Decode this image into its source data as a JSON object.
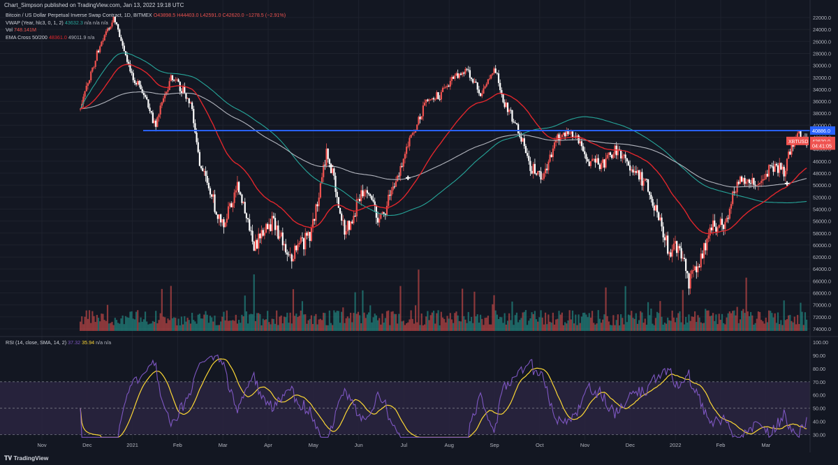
{
  "header": {
    "published": "Chart_Simpson published on TradingView.com, Jan 13, 2022 19:18 UTC"
  },
  "legend": {
    "main": {
      "name": "Bitcoin / US Dollar Perpetual Inverse Swap Contract, 1D, BITMEX",
      "o": "O43898.5",
      "h": "H44403.0",
      "l": "L42591.0",
      "c": "C42620.0",
      "chg": "−1278.5 (−2.91%)"
    },
    "vwap": {
      "name": "VWAP (Year, hlc3, 0, 1, 2)",
      "value": "43632.3",
      "rest": "n/a  n/a  n/a"
    },
    "vol": {
      "name": "Vol",
      "value": "748.141M"
    },
    "ema": {
      "name": "EMA Cross 50/200",
      "v1": "48361.0",
      "v2": "49011.9",
      "rest": "n/a"
    },
    "rsi": {
      "name": "RSI (14, close, SMA, 14, 2)",
      "v1": "37.32",
      "v2": "35.94",
      "rest": "n/a  n/a"
    }
  },
  "colors": {
    "bg": "#131722",
    "up": "#ffffff",
    "down": "#ef5350",
    "vol_up": "#26a69a",
    "vol_down": "#ef5350",
    "level_line": "#2962ff",
    "ema_fast": "#e0262c",
    "ema_slow": "#b2b5be",
    "vwap": "#26a69a",
    "rsi": "#7e57c2",
    "rsi_ma": "#fdd835",
    "rsi_band": "#2a2440"
  },
  "footer": {
    "brand": "TradingView"
  },
  "chart_data": [
    {
      "type": "candlestick",
      "scale": "inverted",
      "axis_ticks": [
        "22000.0",
        "24000.0",
        "26000.0",
        "28000.0",
        "30000.0",
        "32000.0",
        "34000.0",
        "36000.0",
        "38000.0",
        "40000.0",
        "42000.0",
        "44000.0",
        "46000.0",
        "48000.0",
        "50000.0",
        "52000.0",
        "54000.0",
        "56000.0",
        "58000.0",
        "60000.0",
        "62000.0",
        "64000.0",
        "66000.0",
        "68000.0",
        "70000.0",
        "72000.0",
        "74000.0"
      ],
      "x_ticks": [
        "Nov",
        "Dec",
        "2021",
        "Feb",
        "Mar",
        "Apr",
        "May",
        "Jun",
        "Jul",
        "Aug",
        "Sep",
        "Oct",
        "Nov",
        "Dec",
        "2022",
        "Feb",
        "Mar"
      ],
      "price_labels": [
        {
          "text": "40886.0",
          "value": 40886,
          "color": "#2962ff"
        },
        {
          "text": "42620.0",
          "value": 42620,
          "color": "#ef5350"
        },
        {
          "text": "04:41:05",
          "value": 43400,
          "color": "#ef5350"
        }
      ],
      "symbol_label": "XBTUSD",
      "horizontal_level": 40886,
      "ylim": [
        21000,
        75000
      ],
      "anchors": [
        {
          "month": 0.0,
          "price": 55000
        },
        {
          "month": 1.2,
          "price": 41000
        },
        {
          "month": 1.8,
          "price": 26000
        },
        {
          "month": 2.1,
          "price": 22000
        },
        {
          "month": 2.4,
          "price": 30000
        },
        {
          "month": 2.8,
          "price": 36000
        },
        {
          "month": 3.0,
          "price": 40000
        },
        {
          "month": 3.35,
          "price": 32000
        },
        {
          "month": 3.6,
          "price": 34000
        },
        {
          "month": 3.8,
          "price": 37000
        },
        {
          "month": 4.0,
          "price": 47000
        },
        {
          "month": 4.5,
          "price": 57000
        },
        {
          "month": 4.8,
          "price": 50000
        },
        {
          "month": 5.2,
          "price": 60000
        },
        {
          "month": 5.6,
          "price": 56000
        },
        {
          "month": 6.0,
          "price": 62000
        },
        {
          "month": 6.45,
          "price": 58000
        },
        {
          "month": 6.8,
          "price": 44000
        },
        {
          "month": 7.2,
          "price": 58000
        },
        {
          "month": 7.6,
          "price": 51000
        },
        {
          "month": 8.0,
          "price": 56000
        },
        {
          "month": 8.5,
          "price": 45000
        },
        {
          "month": 9.0,
          "price": 36000
        },
        {
          "month": 9.3,
          "price": 35000
        },
        {
          "month": 9.6,
          "price": 32000
        },
        {
          "month": 9.9,
          "price": 31000
        },
        {
          "month": 10.2,
          "price": 35000
        },
        {
          "month": 10.5,
          "price": 30000
        },
        {
          "month": 10.7,
          "price": 36000
        },
        {
          "month": 11.0,
          "price": 40000
        },
        {
          "month": 11.3,
          "price": 47000
        },
        {
          "month": 11.6,
          "price": 48500
        },
        {
          "month": 11.9,
          "price": 42000
        },
        {
          "month": 12.2,
          "price": 41000
        },
        {
          "month": 12.6,
          "price": 46000
        },
        {
          "month": 12.9,
          "price": 46500
        },
        {
          "month": 13.2,
          "price": 44000
        },
        {
          "month": 13.6,
          "price": 48000
        },
        {
          "month": 13.9,
          "price": 50000
        },
        {
          "month": 14.1,
          "price": 55000
        },
        {
          "month": 14.35,
          "price": 61000
        },
        {
          "month": 14.6,
          "price": 60000
        },
        {
          "month": 14.8,
          "price": 66000
        },
        {
          "month": 15.0,
          "price": 63000
        },
        {
          "month": 15.3,
          "price": 57000
        },
        {
          "month": 15.6,
          "price": 56000
        },
        {
          "month": 15.9,
          "price": 49000
        },
        {
          "month": 16.3,
          "price": 50000
        },
        {
          "month": 16.6,
          "price": 47000
        },
        {
          "month": 16.9,
          "price": 47500
        },
        {
          "month": 17.15,
          "price": 41500
        },
        {
          "month": 17.4,
          "price": 42620
        }
      ]
    },
    {
      "type": "line",
      "title": "RSI",
      "axis_ticks": [
        "100.00",
        "90.00",
        "80.00",
        "70.00",
        "60.00",
        "50.00",
        "40.00",
        "30.00"
      ],
      "bands": [
        70,
        50,
        30
      ],
      "ylim": [
        25,
        100
      ],
      "last": {
        "rsi": 37.32,
        "ma": 35.94
      }
    }
  ]
}
